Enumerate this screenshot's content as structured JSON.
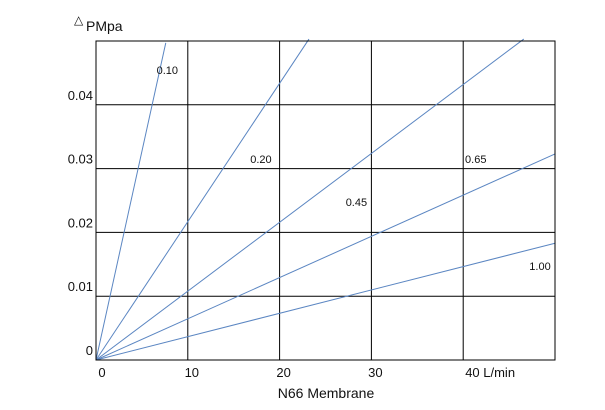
{
  "chart_data": {
    "type": "line",
    "title": "",
    "xlabel": "N66 Membrane",
    "ylabel_symbol": "△",
    "ylabel": "PMpa",
    "x_unit_label": "L/min",
    "xlim": [
      0,
      50
    ],
    "ylim": [
      0,
      0.05
    ],
    "x_ticks": [
      0,
      10,
      20,
      30,
      40
    ],
    "x_tick_labels": [
      "0",
      "10",
      "20",
      "30",
      "40 L/min"
    ],
    "y_ticks": [
      0,
      0.01,
      0.02,
      0.03,
      0.04
    ],
    "y_tick_labels": [
      "0",
      "0.01",
      "0.02",
      "0.03",
      "0.04"
    ],
    "grid": true,
    "line_color": "#5b86c2",
    "series": [
      {
        "name": "0.10",
        "x": [
          0,
          7.6
        ],
        "y": [
          0,
          0.0497
        ]
      },
      {
        "name": "0.20",
        "x": [
          0,
          23.2
        ],
        "y": [
          0,
          0.0503
        ]
      },
      {
        "name": "0.45",
        "x": [
          0,
          46.6
        ],
        "y": [
          0,
          0.0503
        ]
      },
      {
        "name": "0.65",
        "x": [
          0,
          50
        ],
        "y": [
          0,
          0.0323
        ]
      },
      {
        "name": "1.00",
        "x": [
          0,
          50
        ],
        "y": [
          0,
          0.0183
        ]
      }
    ]
  }
}
